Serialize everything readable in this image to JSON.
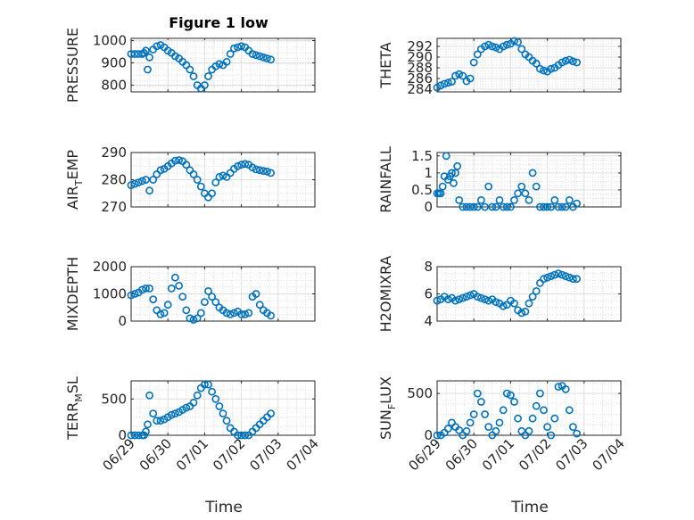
{
  "figure": {
    "title": "Figure 1 low",
    "xlabel": "Time"
  },
  "chart_data": [
    {
      "type": "scatter",
      "ylabel": "PRESSURE",
      "ylim": [
        770,
        1010
      ],
      "yticks": [
        800,
        900,
        1000
      ],
      "xlim": [
        0,
        5
      ],
      "xticklabels": [
        "06/29",
        "06/30",
        "07/01",
        "07/02",
        "07/03",
        "07/04"
      ],
      "x": [
        0,
        0.1,
        0.2,
        0.3,
        0.35,
        0.4,
        0.45,
        0.5,
        0.6,
        0.7,
        0.8,
        0.9,
        1.0,
        1.1,
        1.2,
        1.3,
        1.4,
        1.5,
        1.6,
        1.7,
        1.8,
        1.9,
        2.0,
        2.1,
        2.2,
        2.3,
        2.4,
        2.5,
        2.6,
        2.7,
        2.8,
        2.9,
        3.0,
        3.1,
        3.2,
        3.3,
        3.4,
        3.5,
        3.6,
        3.7,
        3.8
      ],
      "y": [
        940,
        940,
        940,
        940,
        945,
        955,
        870,
        925,
        960,
        975,
        980,
        970,
        955,
        945,
        930,
        920,
        905,
        890,
        870,
        840,
        800,
        785,
        800,
        840,
        870,
        885,
        895,
        890,
        905,
        940,
        965,
        970,
        975,
        970,
        955,
        940,
        935,
        930,
        925,
        920,
        915
      ]
    },
    {
      "type": "scatter",
      "ylabel": "THETA",
      "ylim": [
        283.5,
        293.5
      ],
      "yticks": [
        284,
        286,
        288,
        290,
        292
      ],
      "xlim": [
        0,
        5
      ],
      "xticklabels": [
        "06/29",
        "06/30",
        "07/01",
        "07/02",
        "07/03",
        "07/04"
      ],
      "x": [
        0,
        0.1,
        0.2,
        0.3,
        0.4,
        0.5,
        0.6,
        0.7,
        0.8,
        0.9,
        1.0,
        1.1,
        1.2,
        1.3,
        1.4,
        1.5,
        1.6,
        1.7,
        1.8,
        1.9,
        2.0,
        2.1,
        2.2,
        2.3,
        2.4,
        2.5,
        2.6,
        2.7,
        2.8,
        2.9,
        3.0,
        3.1,
        3.2,
        3.3,
        3.4,
        3.5,
        3.6,
        3.7,
        3.8
      ],
      "y": [
        284.3,
        284.7,
        285,
        285.2,
        285.4,
        286.5,
        286.8,
        286.5,
        285.5,
        286,
        289,
        290.5,
        291.5,
        292,
        292.3,
        292,
        291.8,
        291.5,
        292,
        292.3,
        292.5,
        293,
        292.8,
        291.5,
        290.5,
        290,
        289.3,
        288.8,
        287.8,
        287.5,
        287.3,
        287.8,
        288,
        288.5,
        289,
        289.3,
        289.5,
        289.2,
        289
      ]
    },
    {
      "type": "scatter",
      "ylabel": "AIR_TEMP",
      "ylim": [
        270,
        290
      ],
      "yticks": [
        270,
        280,
        290
      ],
      "xlim": [
        0,
        5
      ],
      "xticklabels": [
        "06/29",
        "06/30",
        "07/01",
        "07/02",
        "07/03",
        "07/04"
      ],
      "x": [
        0,
        0.1,
        0.2,
        0.3,
        0.4,
        0.5,
        0.6,
        0.7,
        0.8,
        0.9,
        1.0,
        1.1,
        1.2,
        1.3,
        1.4,
        1.5,
        1.6,
        1.7,
        1.8,
        1.9,
        2.0,
        2.1,
        2.2,
        2.3,
        2.4,
        2.5,
        2.6,
        2.7,
        2.8,
        2.9,
        3.0,
        3.1,
        3.2,
        3.3,
        3.4,
        3.5,
        3.6,
        3.7,
        3.8
      ],
      "y": [
        278,
        278.5,
        279,
        279.5,
        280,
        276,
        280,
        282,
        283.5,
        284,
        285,
        286,
        287,
        287.2,
        286.8,
        285.5,
        283.5,
        282,
        280,
        277.5,
        275,
        273.5,
        275,
        279,
        281,
        281.5,
        281,
        282.5,
        284,
        285,
        285.5,
        285.8,
        285.5,
        284.5,
        283.8,
        283.5,
        283.2,
        283,
        282.5
      ]
    },
    {
      "type": "scatter",
      "ylabel": "RAINFALL",
      "ylim": [
        0,
        1.6
      ],
      "yticks": [
        0,
        0.5,
        1,
        1.5
      ],
      "xlim": [
        0,
        5
      ],
      "xticklabels": [
        "06/29",
        "06/30",
        "07/01",
        "07/02",
        "07/03",
        "07/04"
      ],
      "x": [
        0,
        0.05,
        0.1,
        0.15,
        0.2,
        0.25,
        0.3,
        0.35,
        0.4,
        0.45,
        0.5,
        0.55,
        0.6,
        0.7,
        0.8,
        0.9,
        1.0,
        1.1,
        1.2,
        1.3,
        1.4,
        1.5,
        1.6,
        1.7,
        1.8,
        1.9,
        2.0,
        2.1,
        2.2,
        2.3,
        2.4,
        2.5,
        2.6,
        2.7,
        2.8,
        2.9,
        3.0,
        3.1,
        3.2,
        3.3,
        3.4,
        3.5,
        3.6,
        3.7,
        3.8
      ],
      "y": [
        0.4,
        0.4,
        0.4,
        0.6,
        0.9,
        1.5,
        0.8,
        0.9,
        1.0,
        0.7,
        1.0,
        1.2,
        0.2,
        0,
        0,
        0,
        0,
        0,
        0.2,
        0,
        0.6,
        0,
        0,
        0.2,
        0,
        0,
        0,
        0.2,
        0.4,
        0.6,
        0.4,
        0.2,
        1.0,
        0.6,
        0,
        0,
        0,
        0,
        0.2,
        0,
        0,
        0,
        0.2,
        0,
        0.1
      ]
    },
    {
      "type": "scatter",
      "ylabel": "MIXDEPTH",
      "ylim": [
        0,
        2000
      ],
      "yticks": [
        0,
        1000,
        2000
      ],
      "xlim": [
        0,
        5
      ],
      "xticklabels": [
        "06/29",
        "06/30",
        "07/01",
        "07/02",
        "07/03",
        "07/04"
      ],
      "x": [
        0,
        0.1,
        0.2,
        0.3,
        0.4,
        0.5,
        0.6,
        0.7,
        0.8,
        0.9,
        1.0,
        1.1,
        1.2,
        1.3,
        1.4,
        1.5,
        1.6,
        1.7,
        1.8,
        1.9,
        2.0,
        2.1,
        2.2,
        2.3,
        2.4,
        2.5,
        2.6,
        2.7,
        2.8,
        2.9,
        3.0,
        3.1,
        3.2,
        3.3,
        3.4,
        3.5,
        3.6,
        3.7,
        3.8
      ],
      "y": [
        950,
        1000,
        1050,
        1150,
        1200,
        1200,
        800,
        400,
        250,
        300,
        600,
        1200,
        1600,
        1300,
        900,
        400,
        100,
        50,
        100,
        300,
        700,
        1100,
        900,
        700,
        500,
        400,
        300,
        250,
        300,
        350,
        250,
        250,
        300,
        900,
        1000,
        600,
        400,
        300,
        200
      ]
    },
    {
      "type": "scatter",
      "ylabel": "H2OMIXRA",
      "ylim": [
        4,
        8
      ],
      "yticks": [
        4,
        6,
        8
      ],
      "xlim": [
        0,
        5
      ],
      "xticklabels": [
        "06/29",
        "06/30",
        "07/01",
        "07/02",
        "07/03",
        "07/04"
      ],
      "x": [
        0,
        0.1,
        0.2,
        0.3,
        0.4,
        0.5,
        0.6,
        0.7,
        0.8,
        0.9,
        1.0,
        1.1,
        1.2,
        1.3,
        1.4,
        1.5,
        1.6,
        1.7,
        1.8,
        1.9,
        2.0,
        2.1,
        2.2,
        2.3,
        2.4,
        2.5,
        2.6,
        2.7,
        2.8,
        2.9,
        3.0,
        3.1,
        3.2,
        3.3,
        3.4,
        3.5,
        3.6,
        3.7,
        3.8
      ],
      "y": [
        5.5,
        5.6,
        5.8,
        5.6,
        5.7,
        5.5,
        5.6,
        5.7,
        5.8,
        5.9,
        6.0,
        5.8,
        5.7,
        5.6,
        5.5,
        5.6,
        5.4,
        5.3,
        5.1,
        5.2,
        5.5,
        5.3,
        4.8,
        4.6,
        4.7,
        5.3,
        5.8,
        6.2,
        6.8,
        7.1,
        7.2,
        7.3,
        7.4,
        7.5,
        7.4,
        7.3,
        7.2,
        7.1,
        7.1
      ]
    },
    {
      "type": "scatter",
      "ylabel": "TERR_MSL",
      "ylim": [
        0,
        750
      ],
      "yticks": [
        0,
        500
      ],
      "xlim": [
        0,
        5
      ],
      "xticklabels": [
        "06/29",
        "06/30",
        "07/01",
        "07/02",
        "07/03",
        "07/04"
      ],
      "x": [
        0,
        0.1,
        0.2,
        0.3,
        0.35,
        0.4,
        0.45,
        0.5,
        0.6,
        0.7,
        0.8,
        0.9,
        1.0,
        1.1,
        1.2,
        1.3,
        1.4,
        1.5,
        1.6,
        1.7,
        1.8,
        1.9,
        2.0,
        2.1,
        2.2,
        2.3,
        2.4,
        2.5,
        2.6,
        2.7,
        2.8,
        2.9,
        3.0,
        3.1,
        3.2,
        3.3,
        3.4,
        3.5,
        3.6,
        3.7,
        3.8
      ],
      "y": [
        0,
        0,
        0,
        0,
        0,
        50,
        150,
        550,
        300,
        200,
        200,
        220,
        250,
        280,
        300,
        320,
        350,
        380,
        400,
        450,
        550,
        650,
        700,
        700,
        600,
        500,
        400,
        300,
        200,
        100,
        50,
        0,
        0,
        0,
        0,
        50,
        100,
        150,
        200,
        250,
        300
      ]
    },
    {
      "type": "scatter",
      "ylabel": "SUN_FLUX",
      "ylim": [
        0,
        650
      ],
      "yticks": [
        0,
        500
      ],
      "xlim": [
        0,
        5
      ],
      "xticklabels": [
        "06/29",
        "06/30",
        "07/01",
        "07/02",
        "07/03",
        "07/04"
      ],
      "x": [
        0,
        0.1,
        0.2,
        0.3,
        0.4,
        0.5,
        0.6,
        0.7,
        0.8,
        0.9,
        1.0,
        1.1,
        1.2,
        1.3,
        1.4,
        1.5,
        1.6,
        1.7,
        1.8,
        1.9,
        2.0,
        2.1,
        2.2,
        2.3,
        2.4,
        2.5,
        2.6,
        2.7,
        2.8,
        2.9,
        3.0,
        3.1,
        3.2,
        3.3,
        3.4,
        3.5,
        3.6,
        3.7,
        3.8
      ],
      "y": [
        0,
        0,
        30,
        80,
        150,
        100,
        60,
        0,
        50,
        150,
        250,
        500,
        400,
        250,
        100,
        0,
        50,
        150,
        300,
        500,
        480,
        400,
        200,
        50,
        0,
        50,
        200,
        350,
        500,
        300,
        100,
        0,
        200,
        580,
        590,
        550,
        300,
        100,
        20
      ]
    }
  ]
}
